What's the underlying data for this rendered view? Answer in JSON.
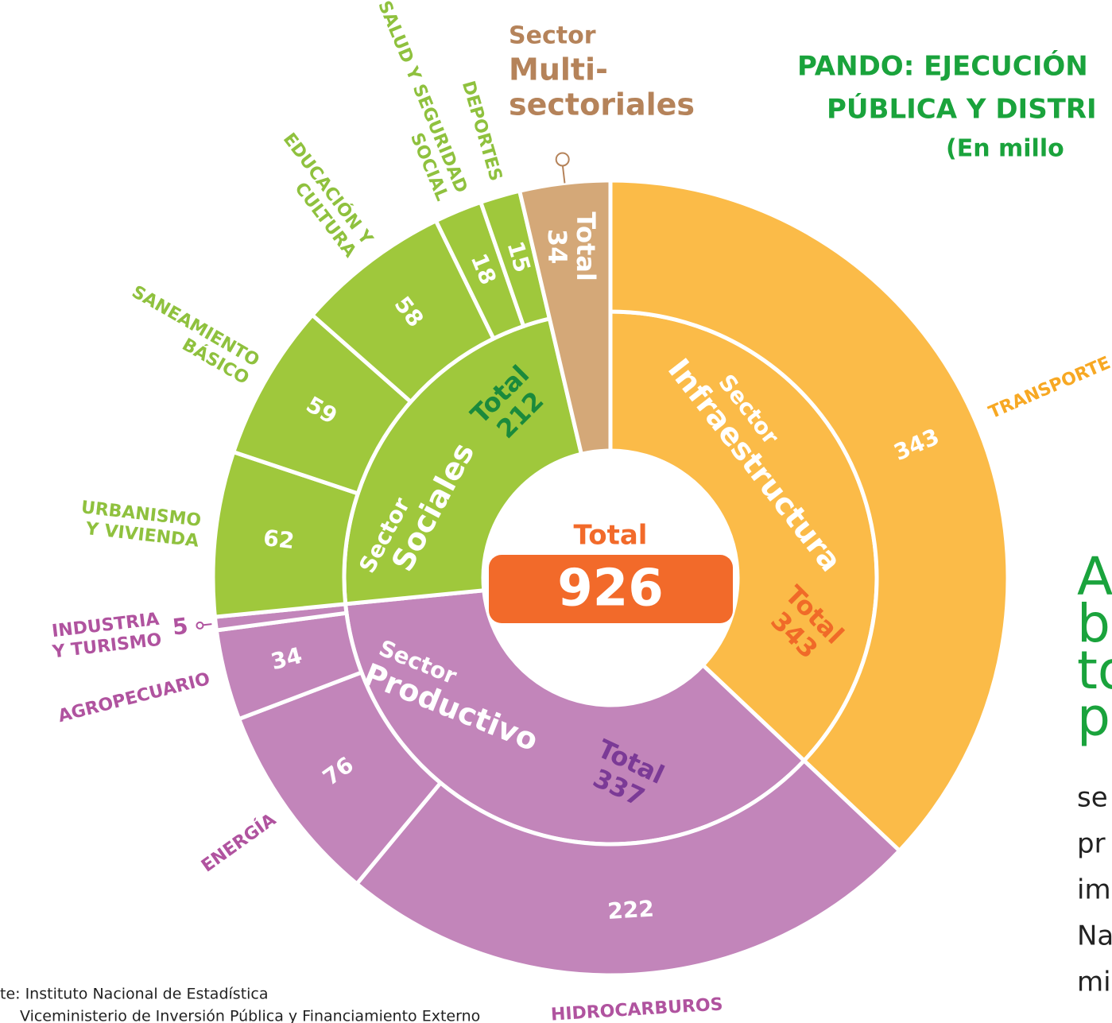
{
  "chart_data": {
    "type": "sunburst",
    "title_lines": [
      "PANDO: EJECUCIÓN",
      "PÚBLICA Y DISTRI"
    ],
    "subtitle": "(En millo",
    "center_label": "Total",
    "total": 926,
    "center_color": "#f26a2a",
    "sector_label": "Sector",
    "total_label": "Total",
    "sectors": [
      {
        "name_lines": [
          "Infraestructura"
        ],
        "value": 343,
        "color": "#fbbb48",
        "text_color": "#f7a823",
        "total_color": "#f06a28",
        "children": [
          {
            "label_lines": [
              "TRANSPORTE"
            ],
            "value": 343
          }
        ]
      },
      {
        "name_lines": [
          "Productivo"
        ],
        "value": 337,
        "color": "#c285ba",
        "text_color": "#b0539f",
        "total_color": "#7b3a96",
        "children": [
          {
            "label_lines": [
              "HIDROCARBUROS"
            ],
            "value": 222
          },
          {
            "label_lines": [
              "ENERGÍA"
            ],
            "value": 76
          },
          {
            "label_lines": [
              "AGROPECUARIO"
            ],
            "value": 34
          },
          {
            "label_lines": [
              "INDUSTRIA",
              "Y TURISMO"
            ],
            "value": 5
          }
        ]
      },
      {
        "name_lines": [
          "Sociales"
        ],
        "value": 212,
        "color": "#9fc83c",
        "text_color": "#8fc13e",
        "total_color": "#1a8a3c",
        "children": [
          {
            "label_lines": [
              "URBANISMO",
              "Y VIVIENDA"
            ],
            "value": 62
          },
          {
            "label_lines": [
              "SANEAMIENTO",
              "BÁSICO"
            ],
            "value": 59
          },
          {
            "label_lines": [
              "EDUCACIÓN Y",
              "CULTURA"
            ],
            "value": 58
          },
          {
            "label_lines": [
              "SALUD Y SEGURIDAD",
              "SOCIAL"
            ],
            "value": 18
          },
          {
            "label_lines": [
              "DEPORTES"
            ],
            "value": 15
          }
        ]
      },
      {
        "name_lines": [
          "Multi-",
          "sectoriales"
        ],
        "value": 34,
        "color": "#d4a878",
        "text_color": "#b5835a",
        "total_color": "#7a5535",
        "children": []
      }
    ],
    "side_text_large": [
      "A",
      "bo",
      "to",
      "pu"
    ],
    "side_text_small": [
      "se",
      "pr",
      "im",
      "Na",
      "mi"
    ],
    "source_lines": [
      "te: Instituto Nacional de Estadística",
      "Viceministerio de Inversión Pública y Financiamiento Externo"
    ]
  }
}
